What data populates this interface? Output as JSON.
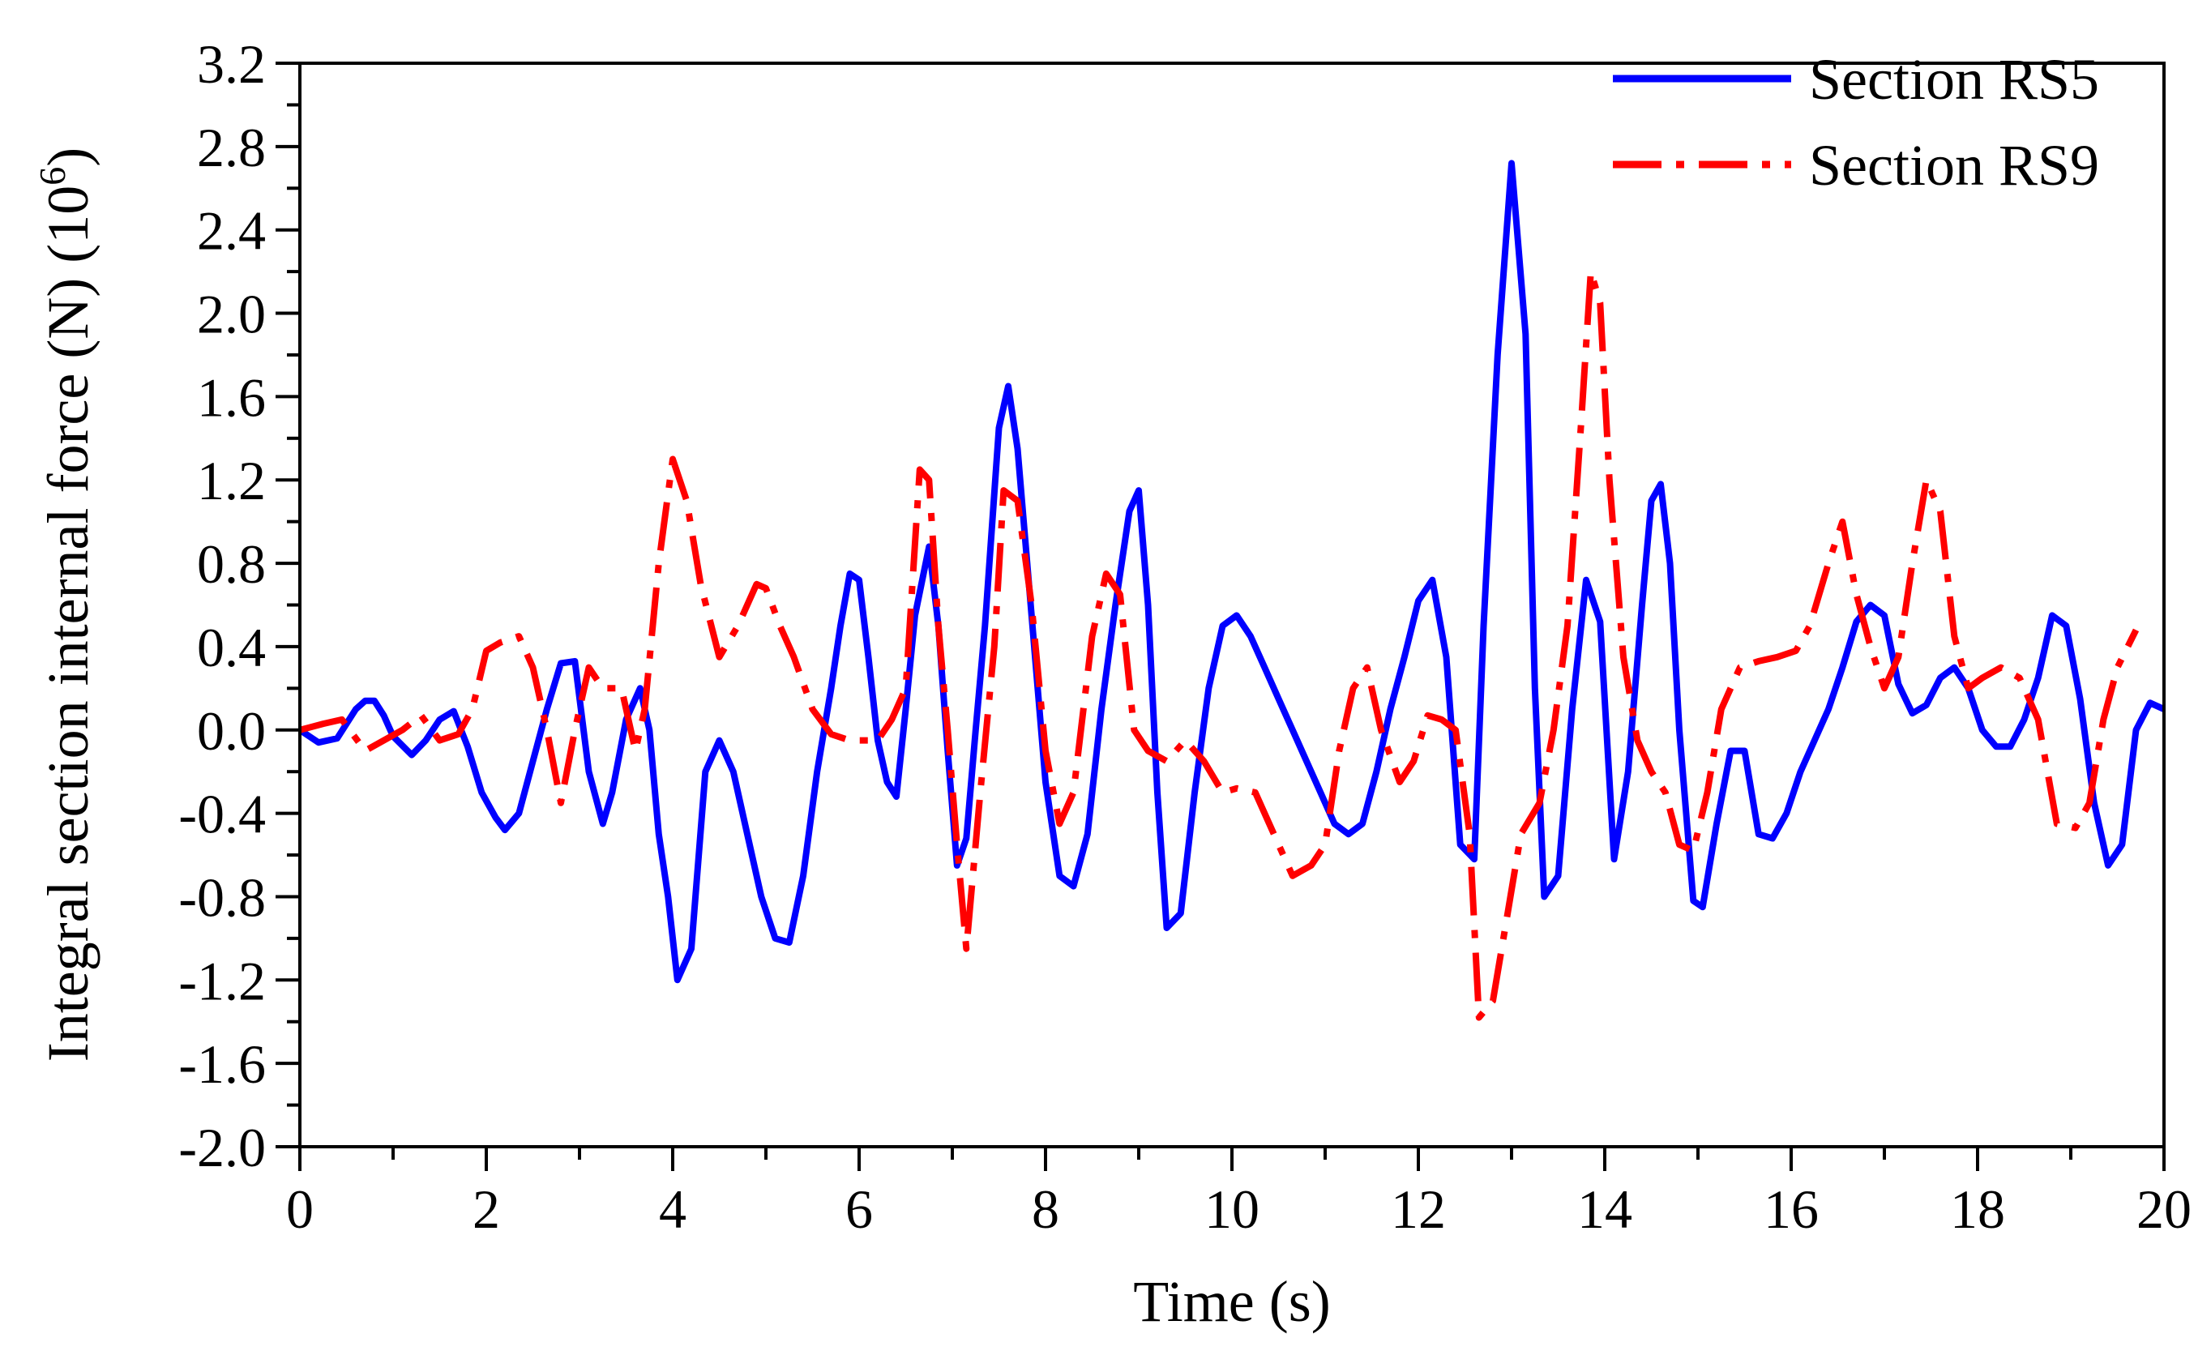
{
  "chart_data": {
    "type": "line",
    "title": "",
    "xlabel": "Time (s)",
    "ylabel": "Integral section internal force (N) (10",
    "ylabel_sup": "6",
    "ylabel_close": ")",
    "xlim": [
      0,
      20
    ],
    "ylim": [
      -2.0,
      3.2
    ],
    "xticks": [
      "0",
      "2",
      "4",
      "6",
      "8",
      "10",
      "12",
      "14",
      "16",
      "18",
      "20"
    ],
    "yticks": [
      "-2.0",
      "-1.6",
      "-1.2",
      "-0.8",
      "-0.4",
      "0.0",
      "0.4",
      "0.8",
      "1.2",
      "1.6",
      "2.0",
      "2.4",
      "2.8",
      "3.2"
    ],
    "grid": false,
    "legend_position": "top-right",
    "series": [
      {
        "name": "Section RS5",
        "color": "#0000ff",
        "style": "solid",
        "x": [
          0,
          0.2,
          0.4,
          0.6,
          0.7,
          0.8,
          0.9,
          1.0,
          1.2,
          1.35,
          1.5,
          1.65,
          1.8,
          1.95,
          2.1,
          2.2,
          2.35,
          2.5,
          2.65,
          2.8,
          2.95,
          3.1,
          3.25,
          3.35,
          3.5,
          3.65,
          3.75,
          3.85,
          3.95,
          4.05,
          4.2,
          4.35,
          4.5,
          4.65,
          4.8,
          4.95,
          5.1,
          5.25,
          5.4,
          5.55,
          5.7,
          5.8,
          5.9,
          6.0,
          6.1,
          6.2,
          6.3,
          6.4,
          6.5,
          6.6,
          6.75,
          6.85,
          6.95,
          7.05,
          7.15,
          7.25,
          7.35,
          7.5,
          7.6,
          7.7,
          7.85,
          8.0,
          8.15,
          8.3,
          8.45,
          8.6,
          8.75,
          8.9,
          9.0,
          9.1,
          9.2,
          9.3,
          9.45,
          9.6,
          9.75,
          9.9,
          10.05,
          10.2,
          10.35,
          10.5,
          10.65,
          10.8,
          10.95,
          11.1,
          11.25,
          11.4,
          11.55,
          11.7,
          11.85,
          12.0,
          12.15,
          12.3,
          12.45,
          12.6,
          12.7,
          12.85,
          13.0,
          13.15,
          13.25,
          13.35,
          13.5,
          13.65,
          13.8,
          13.95,
          14.1,
          14.25,
          14.4,
          14.5,
          14.6,
          14.7,
          14.8,
          14.95,
          15.05,
          15.2,
          15.35,
          15.5,
          15.65,
          15.8,
          15.95,
          16.1,
          16.25,
          16.4,
          16.55,
          16.7,
          16.85,
          17.0,
          17.15,
          17.3,
          17.45,
          17.6,
          17.75,
          17.9,
          18.05,
          18.2,
          18.35,
          18.5,
          18.65,
          18.8,
          18.95,
          19.1,
          19.25,
          19.4,
          19.55,
          19.7,
          19.85,
          20.0
        ],
        "y": [
          0.0,
          -0.06,
          -0.04,
          0.1,
          0.14,
          0.14,
          0.07,
          -0.03,
          -0.12,
          -0.05,
          0.05,
          0.09,
          -0.08,
          -0.3,
          -0.42,
          -0.48,
          -0.4,
          -0.15,
          0.1,
          0.32,
          0.33,
          -0.2,
          -0.45,
          -0.3,
          0.05,
          0.2,
          0.0,
          -0.5,
          -0.8,
          -1.2,
          -1.05,
          -0.2,
          -0.05,
          -0.2,
          -0.5,
          -0.8,
          -1.0,
          -1.02,
          -0.7,
          -0.2,
          0.2,
          0.5,
          0.75,
          0.72,
          0.35,
          -0.05,
          -0.25,
          -0.32,
          0.1,
          0.55,
          0.88,
          0.5,
          -0.1,
          -0.65,
          -0.52,
          0.0,
          0.5,
          1.45,
          1.65,
          1.35,
          0.55,
          -0.25,
          -0.7,
          -0.75,
          -0.5,
          0.1,
          0.6,
          1.05,
          1.15,
          0.6,
          -0.3,
          -0.95,
          -0.88,
          -0.3,
          0.2,
          0.5,
          0.55,
          0.45,
          0.3,
          0.15,
          0.0,
          -0.15,
          -0.3,
          -0.45,
          -0.5,
          -0.45,
          -0.2,
          0.1,
          0.35,
          0.62,
          0.72,
          0.35,
          -0.55,
          -0.62,
          0.5,
          1.8,
          2.72,
          1.9,
          0.2,
          -0.8,
          -0.7,
          0.1,
          0.72,
          0.52,
          -0.62,
          -0.2,
          0.6,
          1.1,
          1.18,
          0.8,
          0.0,
          -0.82,
          -0.85,
          -0.45,
          -0.1,
          -0.1,
          -0.5,
          -0.52,
          -0.4,
          -0.2,
          -0.05,
          0.1,
          0.3,
          0.52,
          0.6,
          0.55,
          0.22,
          0.08,
          0.12,
          0.25,
          0.3,
          0.2,
          0.0,
          -0.08,
          -0.08,
          0.05,
          0.25,
          0.55,
          0.5,
          0.15,
          -0.35,
          -0.65,
          -0.55,
          0.0,
          0.13,
          0.1
        ]
      },
      {
        "name": "Section RS9",
        "color": "#ff0000",
        "style": "dashdot",
        "x": [
          0,
          0.25,
          0.45,
          0.7,
          0.9,
          1.1,
          1.3,
          1.5,
          1.7,
          1.85,
          2.0,
          2.15,
          2.35,
          2.5,
          2.65,
          2.8,
          2.95,
          3.1,
          3.25,
          3.45,
          3.6,
          3.7,
          3.85,
          4.0,
          4.15,
          4.3,
          4.5,
          4.7,
          4.9,
          5.0,
          5.15,
          5.3,
          5.5,
          5.7,
          5.9,
          6.05,
          6.2,
          6.35,
          6.5,
          6.65,
          6.75,
          6.85,
          6.95,
          7.05,
          7.15,
          7.3,
          7.45,
          7.55,
          7.7,
          7.85,
          8.0,
          8.15,
          8.3,
          8.5,
          8.65,
          8.8,
          8.95,
          9.1,
          9.3,
          9.5,
          9.7,
          9.9,
          10.05,
          10.25,
          10.45,
          10.65,
          10.85,
          11.0,
          11.15,
          11.3,
          11.45,
          11.6,
          11.8,
          11.95,
          12.1,
          12.25,
          12.4,
          12.55,
          12.65,
          12.8,
          12.95,
          13.1,
          13.3,
          13.45,
          13.6,
          13.75,
          13.85,
          13.95,
          14.05,
          14.2,
          14.35,
          14.5,
          14.65,
          14.8,
          14.95,
          15.1,
          15.25,
          15.45,
          15.65,
          15.85,
          16.05,
          16.2,
          16.4,
          16.55,
          16.7,
          16.85,
          17.0,
          17.15,
          17.3,
          17.45,
          17.6,
          17.75,
          17.9,
          18.05,
          18.25,
          18.45,
          18.65,
          18.85,
          19.05,
          19.2,
          19.35,
          19.5,
          19.7
        ],
        "y": [
          0.0,
          0.03,
          0.05,
          -0.1,
          -0.05,
          0.0,
          0.07,
          -0.05,
          -0.02,
          0.1,
          0.38,
          0.42,
          0.45,
          0.3,
          0.0,
          -0.35,
          0.0,
          0.3,
          0.2,
          0.2,
          -0.1,
          0.1,
          0.8,
          1.3,
          1.1,
          0.7,
          0.35,
          0.5,
          0.7,
          0.68,
          0.5,
          0.35,
          0.1,
          -0.02,
          -0.05,
          -0.05,
          -0.05,
          0.05,
          0.2,
          1.25,
          1.2,
          0.5,
          0.0,
          -0.55,
          -1.05,
          -0.3,
          0.4,
          1.15,
          1.1,
          0.6,
          -0.1,
          -0.45,
          -0.3,
          0.45,
          0.75,
          0.65,
          0.0,
          -0.1,
          -0.15,
          -0.05,
          -0.15,
          -0.3,
          -0.28,
          -0.3,
          -0.5,
          -0.7,
          -0.65,
          -0.55,
          -0.1,
          0.2,
          0.3,
          0.0,
          -0.25,
          -0.15,
          0.07,
          0.05,
          0.0,
          -0.5,
          -1.38,
          -1.3,
          -0.9,
          -0.5,
          -0.35,
          0.0,
          0.5,
          1.5,
          2.2,
          2.05,
          1.2,
          0.35,
          -0.05,
          -0.2,
          -0.3,
          -0.55,
          -0.58,
          -0.3,
          0.1,
          0.3,
          0.33,
          0.35,
          0.38,
          0.5,
          0.8,
          1.0,
          0.65,
          0.4,
          0.2,
          0.35,
          0.8,
          1.2,
          1.05,
          0.45,
          0.2,
          0.25,
          0.3,
          0.25,
          0.05,
          -0.45,
          -0.47,
          -0.35,
          0.05,
          0.3,
          0.48
        ]
      }
    ]
  }
}
